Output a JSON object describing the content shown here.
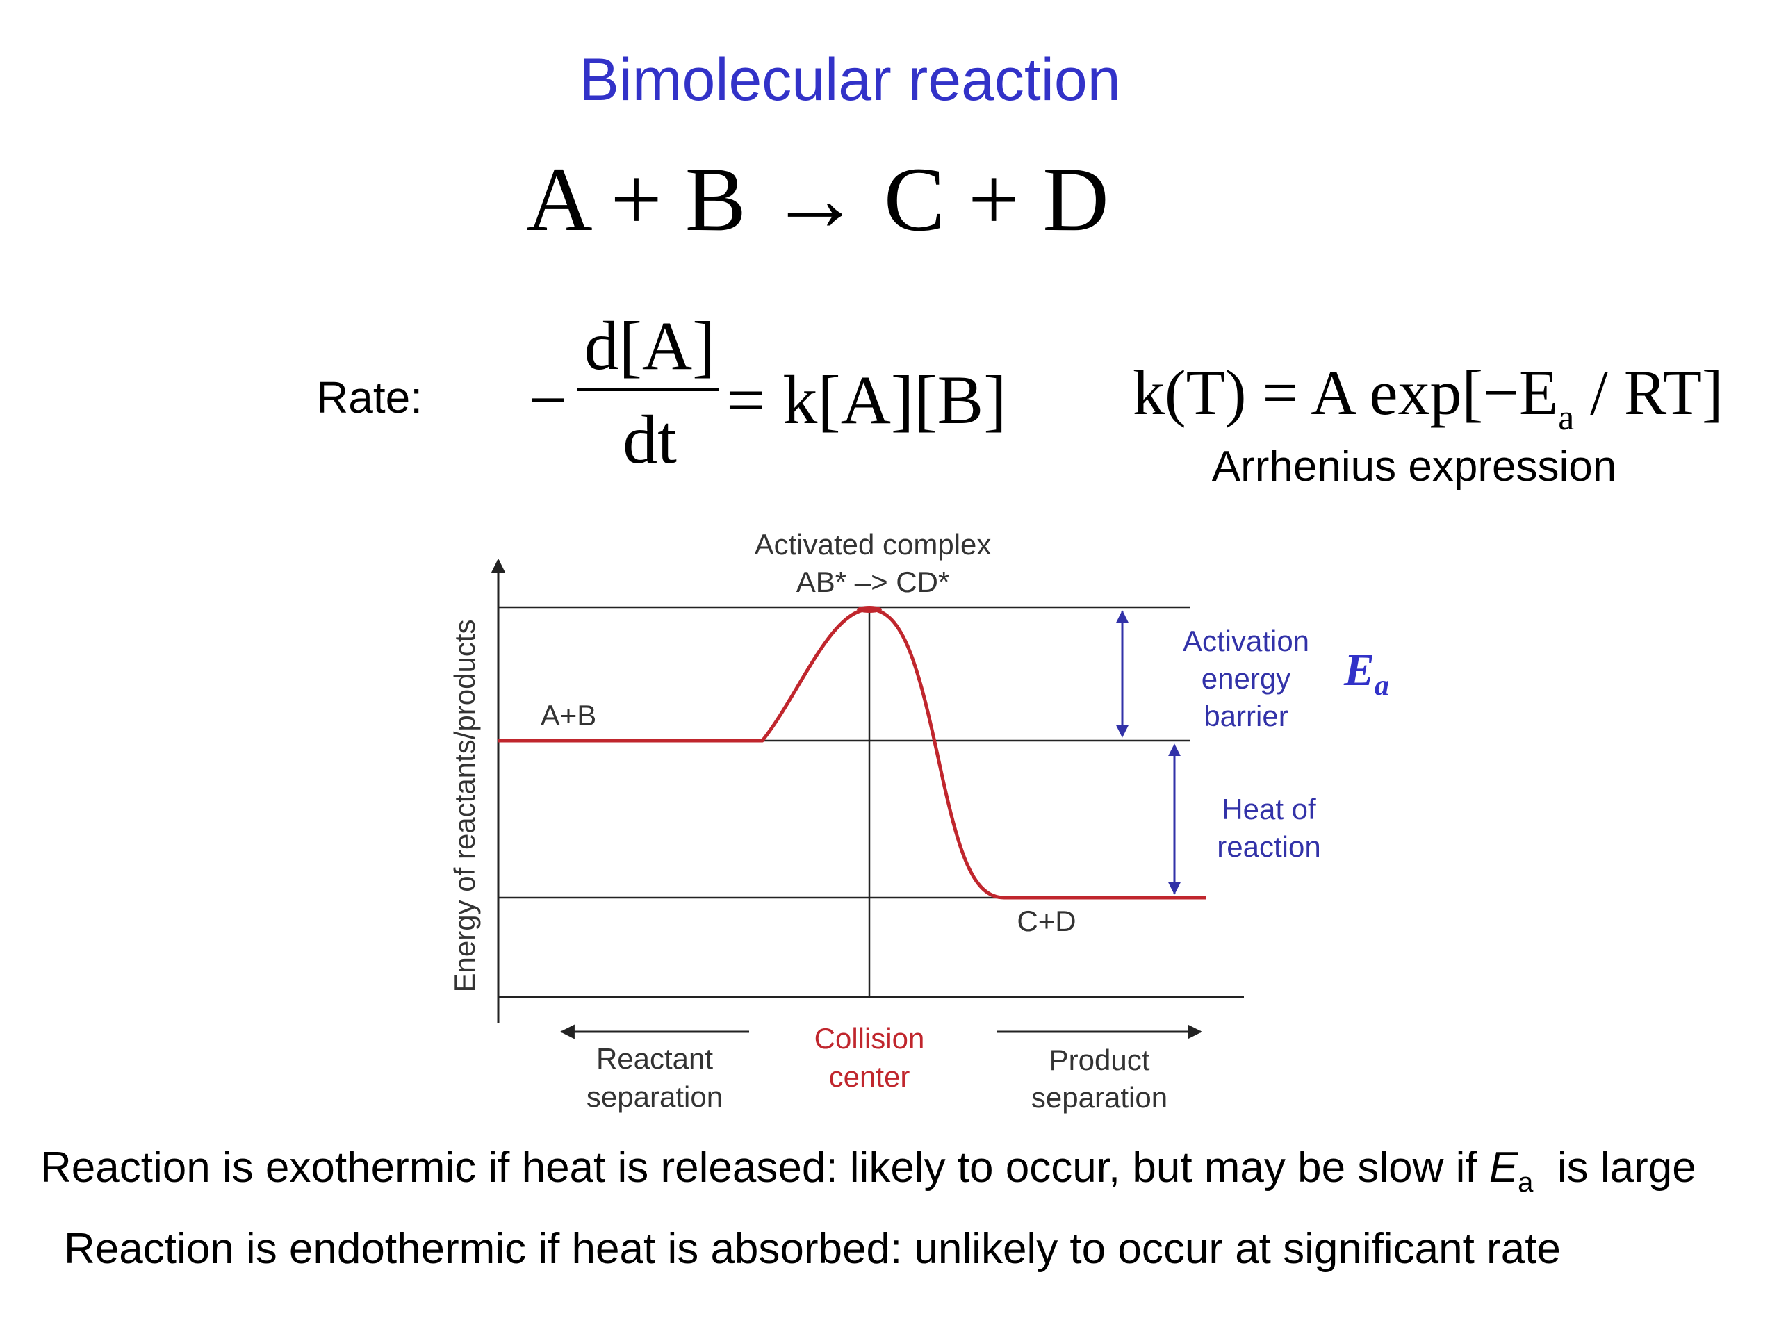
{
  "title": "Bimolecular reaction",
  "equation": "A + B → C + D",
  "rate": {
    "label": "Rate:",
    "minus": "−",
    "numerator": "d[A]",
    "denominator": "dt",
    "rhs": "= k[A][B]"
  },
  "arrhenius": {
    "lhs": "k(T) = A exp[−E",
    "sub": "a",
    "rhs": " / RT]",
    "label": "Arrhenius expression"
  },
  "diagram": {
    "y_axis_label": "Energy of reactants/products",
    "top_label_line1": "Activated complex",
    "top_label_line2": "AB* –> CD*",
    "reactants_label": "A+B",
    "products_label": "C+D",
    "activation_label": [
      "Activation",
      "energy",
      "barrier"
    ],
    "ea_symbol": "E",
    "ea_sub": "a",
    "heat_label": [
      "Heat of",
      "reaction"
    ],
    "reactant_sep_label": [
      "Reactant",
      "separation"
    ],
    "collision_label": [
      "Collision",
      "center"
    ],
    "product_sep_label": [
      "Product",
      "separation"
    ],
    "colors": {
      "curve": "#c0262d",
      "annotation": "#3232a8",
      "collision": "#c0262d",
      "lines": "#222222"
    }
  },
  "notes": {
    "line1_a": "Reaction is exothermic if heat is released: likely to occur, but may be slow if ",
    "line1_ea": "E",
    "line1_sub": "a",
    "line1_b": "  is large",
    "line2": "Reaction is endothermic if heat is absorbed: unlikely to occur at significant rate"
  }
}
